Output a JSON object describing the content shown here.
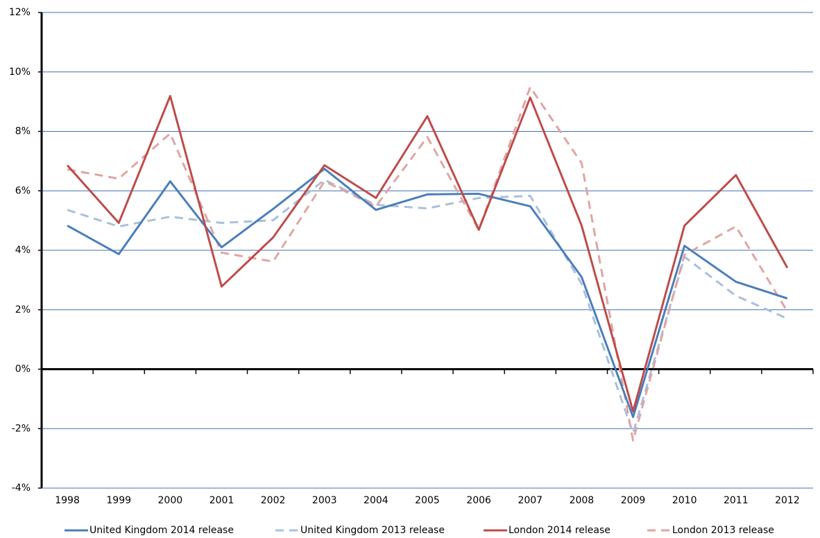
{
  "chart_data": {
    "type": "line",
    "categories": [
      "1998",
      "1999",
      "2000",
      "2001",
      "2002",
      "2003",
      "2004",
      "2005",
      "2006",
      "2007",
      "2008",
      "2009",
      "2010",
      "2011",
      "2012"
    ],
    "series": [
      {
        "name": "United Kingdom 2014 release",
        "color": "#4a7ebb",
        "dashed": false,
        "values": [
          4.83,
          3.87,
          6.32,
          4.1,
          5.39,
          6.74,
          5.36,
          5.88,
          5.9,
          5.48,
          3.1,
          -1.61,
          4.15,
          2.94,
          2.38
        ]
      },
      {
        "name": "United Kingdom 2013 release",
        "color": "#a9c0dc",
        "dashed": true,
        "values": [
          5.36,
          4.8,
          5.13,
          4.92,
          5.01,
          6.37,
          5.53,
          5.41,
          5.76,
          5.83,
          2.87,
          -2.15,
          3.78,
          2.47,
          1.7
        ]
      },
      {
        "name": "London 2014 release",
        "color": "#be4b48",
        "dashed": false,
        "values": [
          6.86,
          4.92,
          9.19,
          2.78,
          4.43,
          6.86,
          5.76,
          8.51,
          4.69,
          9.14,
          4.83,
          -1.42,
          4.83,
          6.53,
          3.41
        ]
      },
      {
        "name": "London 2013 release",
        "color": "#e0a5a3",
        "dashed": true,
        "values": [
          6.72,
          6.41,
          7.93,
          3.92,
          3.62,
          6.32,
          5.48,
          7.81,
          4.69,
          9.49,
          6.93,
          -2.4,
          3.85,
          4.8,
          1.94
        ]
      }
    ],
    "ylim": [
      -4,
      12
    ],
    "yticks": [
      {
        "value": -4,
        "label": "-4%"
      },
      {
        "value": -2,
        "label": "-2%"
      },
      {
        "value": 0,
        "label": "0%"
      },
      {
        "value": 2,
        "label": "2%"
      },
      {
        "value": 4,
        "label": "4%"
      },
      {
        "value": 6,
        "label": "6%"
      },
      {
        "value": 8,
        "label": "8%"
      },
      {
        "value": 10,
        "label": "10%"
      },
      {
        "value": 12,
        "label": "12%"
      }
    ],
    "grid": true,
    "legend": "bottom"
  }
}
